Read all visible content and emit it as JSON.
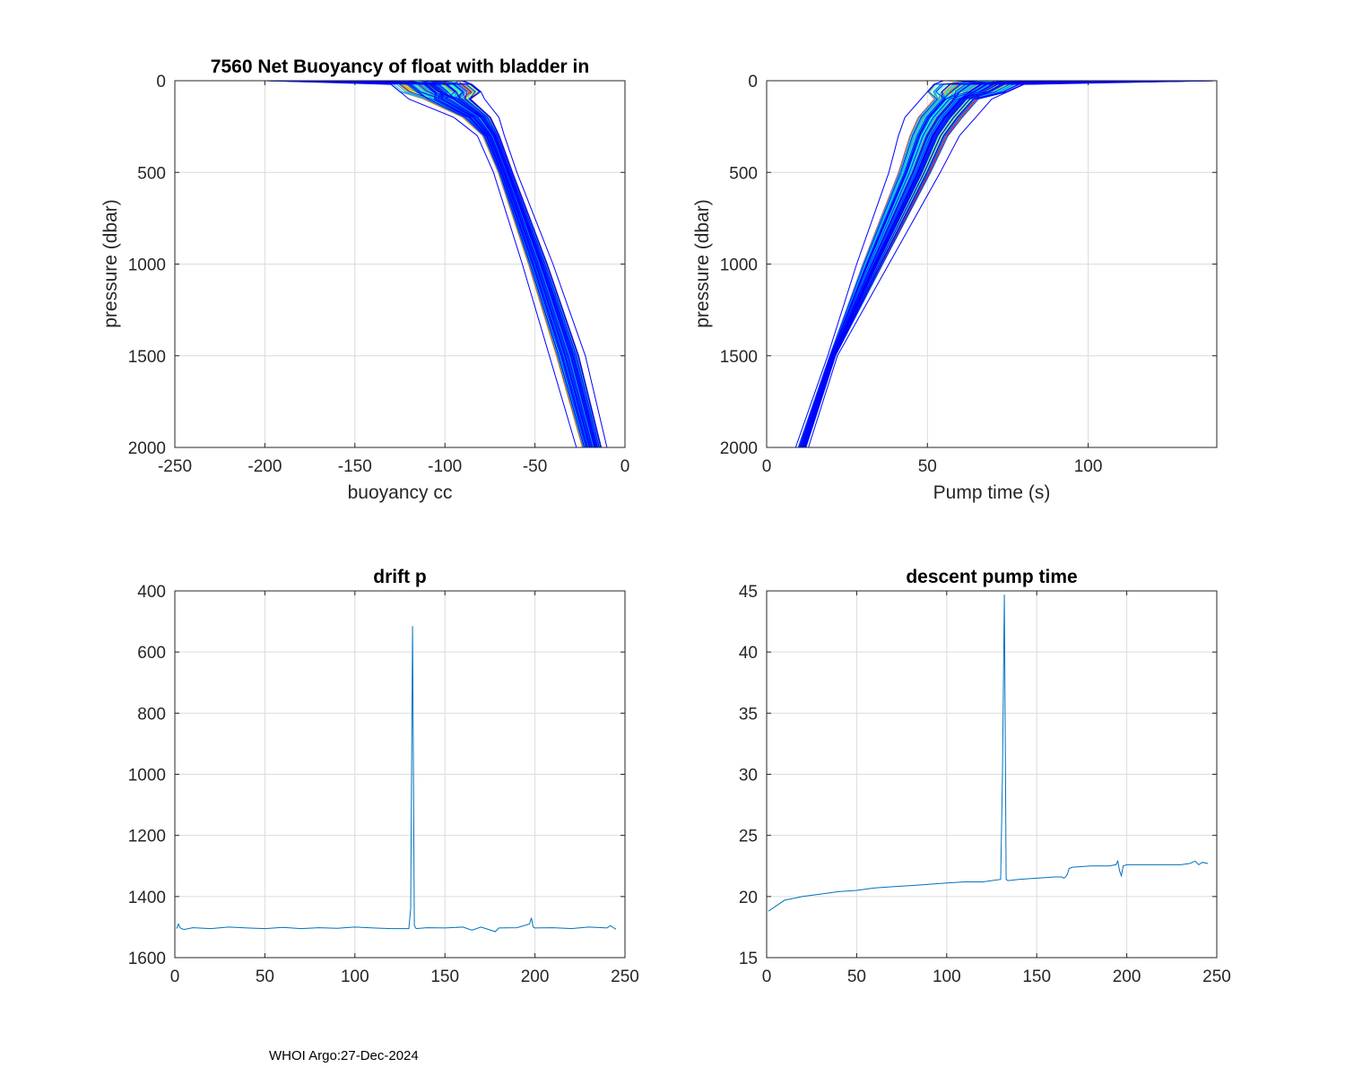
{
  "figure": {
    "footer": "WHOI Argo:27-Dec-2024"
  },
  "chart_data": [
    {
      "id": "buoyancy",
      "type": "line",
      "title": "7560 Net Buoyancy of float with bladder in",
      "xlabel": "buoyancy cc",
      "ylabel": "pressure (dbar)",
      "xlim": [
        -250,
        0
      ],
      "ylim": [
        0,
        2000
      ],
      "y_reversed": true,
      "xticks": [
        -250,
        -200,
        -150,
        -100,
        -50,
        0
      ],
      "yticks": [
        0,
        500,
        1000,
        1500,
        2000
      ],
      "grid": true,
      "series_count": 245,
      "colormap": [
        "#0000ff",
        "#00a0ff",
        "#00ffff",
        "#80ff80",
        "#ffff00",
        "#ff8000",
        "#ff0000",
        "#800000"
      ],
      "envelope": {
        "pressure": [
          0,
          20,
          60,
          100,
          200,
          300,
          500,
          1000,
          1500,
          2000
        ],
        "buoyancy_min": [
          -200,
          -130,
          -125,
          -120,
          -95,
          -82,
          -73,
          -57,
          -42,
          -27
        ],
        "buoyancy_max": [
          -90,
          -85,
          -80,
          -78,
          -70,
          -67,
          -60,
          -40,
          -22,
          -10
        ]
      }
    },
    {
      "id": "pumptime",
      "type": "line",
      "title": "",
      "xlabel": "Pump time (s)",
      "ylabel": "pressure (dbar)",
      "xlim": [
        0,
        140
      ],
      "ylim": [
        0,
        2000
      ],
      "y_reversed": true,
      "xticks": [
        0,
        50,
        100
      ],
      "yticks": [
        0,
        500,
        1000,
        1500,
        2000
      ],
      "grid": true,
      "series_count": 245,
      "colormap": [
        "#0000ff",
        "#00a0ff",
        "#00ffff",
        "#80ff80",
        "#ffff00",
        "#ff8000",
        "#ff0000",
        "#800000"
      ],
      "envelope": {
        "pressure": [
          0,
          20,
          60,
          100,
          200,
          300,
          500,
          1000,
          1500,
          2000
        ],
        "pump_min": [
          55,
          52,
          50,
          48,
          43,
          41,
          38,
          28,
          19,
          9
        ],
        "pump_max": [
          140,
          80,
          75,
          70,
          65,
          60,
          54,
          38,
          22,
          13
        ]
      }
    },
    {
      "id": "driftp",
      "type": "line",
      "title": "drift p",
      "xlabel": "",
      "ylabel": "",
      "xlim": [
        0,
        250
      ],
      "ylim": [
        400,
        1600
      ],
      "y_reversed": true,
      "xticks": [
        0,
        50,
        100,
        150,
        200,
        250
      ],
      "yticks": [
        400,
        600,
        800,
        1000,
        1200,
        1400,
        1600
      ],
      "grid": true,
      "color": "#0072bd",
      "series": [
        {
          "x": [
            1,
            2,
            3,
            5,
            10,
            20,
            30,
            40,
            50,
            60,
            70,
            80,
            90,
            100,
            110,
            120,
            130,
            131,
            132,
            133,
            134,
            140,
            150,
            160,
            165,
            170,
            178,
            180,
            190,
            197,
            198,
            199,
            200,
            210,
            220,
            230,
            240,
            242,
            243,
            245
          ],
          "y": [
            1505,
            1490,
            1503,
            1508,
            1502,
            1505,
            1500,
            1503,
            1505,
            1501,
            1505,
            1502,
            1504,
            1500,
            1503,
            1505,
            1505,
            1440,
            515,
            1495,
            1505,
            1502,
            1503,
            1500,
            1510,
            1500,
            1515,
            1503,
            1502,
            1490,
            1470,
            1500,
            1503,
            1502,
            1505,
            1500,
            1503,
            1495,
            1500,
            1507
          ]
        }
      ]
    },
    {
      "id": "descentpump",
      "type": "line",
      "title": "descent pump time",
      "xlabel": "",
      "ylabel": "",
      "xlim": [
        0,
        250
      ],
      "ylim": [
        15,
        45
      ],
      "y_reversed": false,
      "xticks": [
        0,
        50,
        100,
        150,
        200,
        250
      ],
      "yticks": [
        15,
        20,
        25,
        30,
        35,
        40,
        45
      ],
      "grid": true,
      "color": "#0072bd",
      "series": [
        {
          "x": [
            1,
            3,
            5,
            8,
            10,
            20,
            30,
            40,
            50,
            60,
            70,
            80,
            90,
            100,
            110,
            120,
            130,
            131,
            132,
            133,
            134,
            140,
            150,
            160,
            164,
            165,
            166,
            167,
            168,
            170,
            180,
            190,
            194,
            195,
            196,
            197,
            198,
            200,
            210,
            220,
            230,
            235,
            238,
            240,
            242,
            245
          ],
          "y": [
            18.8,
            19.0,
            19.2,
            19.5,
            19.7,
            20.0,
            20.2,
            20.4,
            20.5,
            20.7,
            20.8,
            20.9,
            21.0,
            21.1,
            21.2,
            21.2,
            21.4,
            30.0,
            44.7,
            21.4,
            21.3,
            21.4,
            21.5,
            21.6,
            21.6,
            21.5,
            21.6,
            21.8,
            22.3,
            22.4,
            22.5,
            22.5,
            22.6,
            22.9,
            22.1,
            21.7,
            22.5,
            22.6,
            22.6,
            22.6,
            22.6,
            22.7,
            22.9,
            22.6,
            22.8,
            22.7
          ]
        }
      ]
    }
  ]
}
